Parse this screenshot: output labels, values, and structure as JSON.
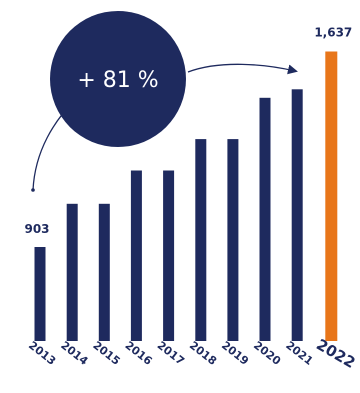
{
  "chart_data": {
    "type": "bar",
    "title": "",
    "xlabel": "",
    "ylabel": "",
    "categories": [
      "2013",
      "2014",
      "2015",
      "2016",
      "2017",
      "2018",
      "2019",
      "2020",
      "2021",
      "2022"
    ],
    "values": [
      903,
      1065,
      1065,
      1190,
      1190,
      1308,
      1308,
      1463,
      1495,
      1637
    ],
    "ylim": [
      550,
      1680
    ],
    "highlight_index": 9,
    "data_labels": {
      "first": "903",
      "last": "1,637"
    },
    "annotation": {
      "text": "+ 81 %"
    },
    "colors": {
      "bar": "#1e2a5e",
      "highlight": "#e8761a",
      "badge": "#1e2a5e",
      "text": "#1e2a5e"
    }
  }
}
